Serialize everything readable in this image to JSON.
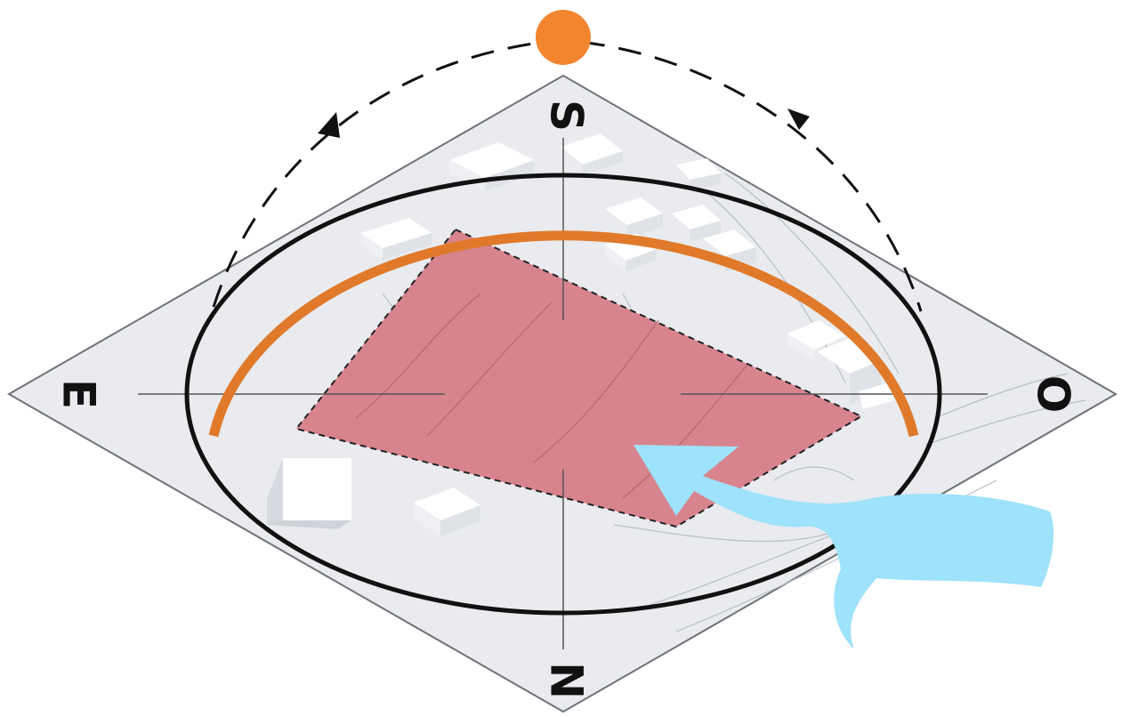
{
  "compass": {
    "north": "N",
    "south": "S",
    "east": "E",
    "west": "O"
  },
  "colors": {
    "background": "#ffffff",
    "ground": "#e9ebef",
    "ground_stroke": "#7a7d82",
    "site_fill": "#d8848f",
    "sun": "#f28530",
    "sun_arc": "#e07a2a",
    "ring": "#111111",
    "wind": "#9ee2fb",
    "buildings": "#f7f7f8",
    "building_shadow": "#d4d8de",
    "axis": "#555555"
  },
  "icons": {
    "sun": "sun-icon",
    "wind": "wind-arrow-icon",
    "sun_path": "sun-path-arrows"
  }
}
